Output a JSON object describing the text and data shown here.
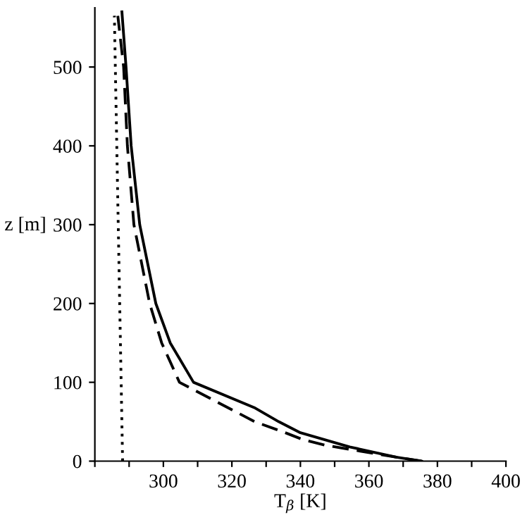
{
  "chart_data": {
    "type": "line",
    "xlabel": "T$_{β}$ [K]",
    "ylabel": "z [m]",
    "xlim": [
      280,
      400
    ],
    "ylim": [
      0,
      575
    ],
    "xticks": [
      {
        "value": 280,
        "label": null
      },
      {
        "value": 290,
        "label": null
      },
      300,
      {
        "value": 310,
        "label": null
      },
      320,
      {
        "value": 330,
        "label": null
      },
      340,
      {
        "value": 350,
        "label": null
      },
      360,
      {
        "value": 370,
        "label": null
      },
      380,
      {
        "value": 390,
        "label": null
      },
      400
    ],
    "yticks": [
      0,
      100,
      200,
      300,
      400,
      500
    ],
    "grid": false,
    "legend": false,
    "marker": "none",
    "series": [
      {
        "color": "#000000",
        "line_style": "solid",
        "x": [
          375.4,
          368,
          354.4,
          340,
          333.7,
          326.5,
          308.8,
          302,
          297.8,
          293.1,
          290.6,
          289.1,
          287.9
        ],
        "values": [
          0,
          5,
          18,
          36,
          50,
          68,
          100,
          150,
          200,
          300,
          400,
          500,
          570
        ]
      },
      {
        "color": "#000000",
        "line_style": "dashed",
        "x": [
          375.4,
          368,
          354.4,
          347.4,
          340.3,
          335,
          326.7,
          304.7,
          299.5,
          296,
          291.4,
          289.5,
          288.4,
          286.7
        ],
        "values": [
          0,
          5,
          15,
          20,
          28,
          37,
          50,
          100,
          150,
          200,
          300,
          400,
          500,
          565
        ]
      },
      {
        "color": "#000000",
        "line_style": "dotted",
        "x": [
          288.1,
          285.7
        ],
        "values": [
          0,
          565
        ]
      }
    ]
  }
}
